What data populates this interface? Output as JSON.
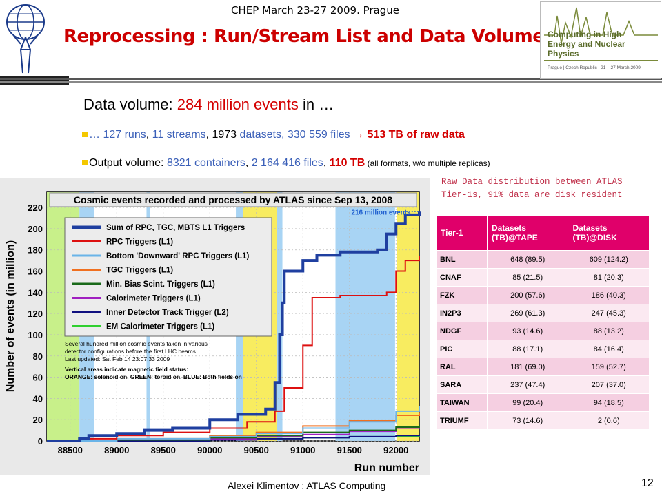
{
  "header": {
    "conference": "CHEP  March 23-27 2009. Prague",
    "title": "Reprocessing : Run/Stream List and Data Volume",
    "logo_text": "Computing in High Energy and Nuclear Physics",
    "logo_subtext": "Prague | Czech Republic | 21 – 27 March 2009"
  },
  "summary": {
    "line1": {
      "prefix": "Data volume: ",
      "highlight": "284 million events",
      "suffix": " in …"
    },
    "line2": {
      "p1": "… 127 runs",
      "s1": ", ",
      "p2": "11 streams",
      "s2": ", ",
      "p3": "1973",
      "s3": " datasets, ",
      "p4": "330 559 files",
      "arrow": " → ",
      "p5": "513 TB of raw data"
    },
    "line3": {
      "p1": "Output volume: ",
      "p2": "8321 containers",
      "s2": ", ",
      "p3": "2 164 416 files",
      "s3": ", ",
      "p4": "110 TB",
      "p5": " (all formats, ",
      "p6": "w/o multiple replicas)"
    }
  },
  "raw_note": "Raw Data distribution between ATLAS Tier-1s, 91% data are disk resident",
  "table": {
    "headers": [
      "Tier-1",
      "Datasets (TB)@TAPE",
      "Datasets (TB)@DISK"
    ],
    "rows": [
      [
        "BNL",
        "648 (89.5)",
        "609 (124.2)"
      ],
      [
        "CNAF",
        "85 (21.5)",
        "81 (20.3)"
      ],
      [
        "FZK",
        "200 (57.6)",
        "186 (40.3)"
      ],
      [
        "IN2P3",
        "269 (61.3)",
        "247 (45.3)"
      ],
      [
        "NDGF",
        "93 (14.6)",
        "88 (13.2)"
      ],
      [
        "PIC",
        "88 (17.1)",
        "84 (16.4)"
      ],
      [
        "RAL",
        "181 (69.0)",
        "159 (52.7)"
      ],
      [
        "SARA",
        "237 (47.4)",
        "207 (37.0)"
      ],
      [
        "TAIWAN",
        "99 (20.4)",
        "94 (18.5)"
      ],
      [
        "TRIUMF",
        "73 (14.6)",
        "2 (0.6)"
      ]
    ]
  },
  "chart_data": {
    "type": "line",
    "title": "Cosmic events recorded and processed by ATLAS since Sep 13, 2008",
    "xlabel": "Run number",
    "ylabel": "Number of events (in million)",
    "xlim": [
      88250,
      92250
    ],
    "ylim": [
      0,
      235
    ],
    "x_ticks": [
      88500,
      89000,
      89500,
      90000,
      90500,
      91000,
      91500,
      92000
    ],
    "y_ticks": [
      0,
      20,
      40,
      60,
      80,
      100,
      120,
      140,
      160,
      180,
      200,
      220
    ],
    "annotation": "216 million events",
    "notes": [
      "Several hundred million cosmic events taken in various",
      "detector configurations before the first LHC beams.",
      "Last updated: Sat Feb 14 23:07:33 2009",
      "Vertical areas indicate magnetic field status:",
      "ORANGE: solenoid on, GREEN: toroid on, BLUE: Both fields on"
    ],
    "field_bands": [
      {
        "from": 88250,
        "to": 88600,
        "color": "#c8f08a"
      },
      {
        "from": 88600,
        "to": 88760,
        "color": "#a8d4f4"
      },
      {
        "from": 89320,
        "to": 89360,
        "color": "#a8d4f4"
      },
      {
        "from": 90280,
        "to": 90360,
        "color": "#a8d4f4"
      },
      {
        "from": 90360,
        "to": 90720,
        "color": "#f8ec60"
      },
      {
        "from": 90720,
        "to": 90780,
        "color": "#a8d4f4"
      },
      {
        "from": 91350,
        "to": 91990,
        "color": "#a8d4f4"
      },
      {
        "from": 92010,
        "to": 92250,
        "color": "#f8ec60"
      }
    ],
    "series": [
      {
        "name": "Sum of RPC, TGC, MBTS L1 Triggers",
        "color": "#1f3fa0",
        "width": 4,
        "x": [
          88250,
          88600,
          88700,
          89000,
          89300,
          89600,
          90000,
          90300,
          90600,
          90700,
          90750,
          90780,
          90800,
          91000,
          91150,
          91400,
          91800,
          91900,
          92000,
          92100,
          92250
        ],
        "values": [
          0,
          2,
          5,
          7,
          10,
          12,
          20,
          25,
          30,
          55,
          100,
          130,
          160,
          170,
          175,
          178,
          180,
          195,
          205,
          213,
          216
        ]
      },
      {
        "name": "RPC Triggers (L1)",
        "color": "#dd1010",
        "width": 2,
        "x": [
          88250,
          88600,
          89000,
          89500,
          90000,
          90400,
          90700,
          90800,
          91000,
          91100,
          91400,
          91900,
          92000,
          92100,
          92250
        ],
        "values": [
          0,
          2,
          5,
          8,
          12,
          18,
          28,
          50,
          90,
          135,
          137,
          140,
          160,
          170,
          174
        ]
      },
      {
        "name": "Bottom 'Downward' RPC Triggers (L1)",
        "color": "#6ab4e8",
        "width": 2,
        "x": [
          88250,
          89000,
          90000,
          90500,
          91000,
          91500,
          92000,
          92250
        ],
        "values": [
          0,
          2,
          4,
          7,
          12,
          18,
          28,
          33
        ]
      },
      {
        "name": "TGC Triggers (L1)",
        "color": "#f07020",
        "width": 2,
        "x": [
          88250,
          89000,
          90000,
          90500,
          91000,
          91500,
          92000,
          92250
        ],
        "values": [
          0,
          2,
          5,
          8,
          14,
          19,
          24,
          27
        ]
      },
      {
        "name": "Min. Bias Scint. Triggers (L1)",
        "color": "#1a6a1a",
        "width": 2,
        "x": [
          88250,
          89000,
          90000,
          90500,
          91000,
          91500,
          92000,
          92250
        ],
        "values": [
          0,
          1,
          3,
          5,
          8,
          10,
          13,
          15
        ]
      },
      {
        "name": "Calorimeter Triggers (L1)",
        "color": "#a020c0",
        "width": 2,
        "x": [
          88250,
          89000,
          90000,
          90500,
          91000,
          91500,
          92000,
          92250
        ],
        "values": [
          0,
          1,
          2,
          4,
          6,
          9,
          12,
          14
        ]
      },
      {
        "name": "Inner Detector Track Trigger (L2)",
        "color": "#101080",
        "width": 2,
        "x": [
          88250,
          89000,
          90000,
          90500,
          91000,
          91500,
          92000,
          92250
        ],
        "values": [
          0,
          0,
          1,
          2,
          3,
          4,
          5,
          6
        ]
      },
      {
        "name": "EM Calorimeter Triggers (L1)",
        "color": "#30d030",
        "width": 2,
        "x": [
          88250,
          89000,
          90000,
          90500,
          91000,
          91500,
          92000,
          92250
        ],
        "values": [
          0,
          0,
          1,
          2,
          3,
          4,
          4,
          5
        ]
      }
    ]
  },
  "footer": {
    "author": "Alexei Klimentov :  ATLAS Computing",
    "page": "12"
  }
}
